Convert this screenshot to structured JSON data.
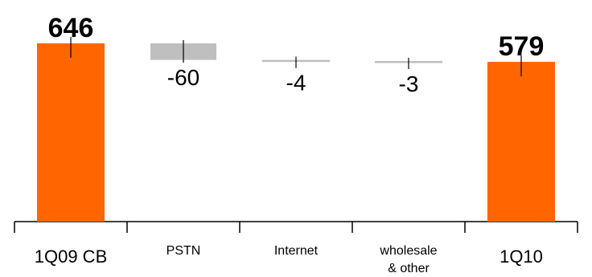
{
  "chart_data": {
    "type": "bar",
    "subtype": "waterfall",
    "title": "",
    "xlabel": "",
    "ylabel": "",
    "categories": [
      "1Q09 CB",
      "PSTN",
      "Internet",
      "wholesale\n& other",
      "1Q10"
    ],
    "values": [
      646,
      -60,
      -4,
      -3,
      579
    ],
    "value_labels": [
      "646",
      "-60",
      "-4",
      "-3",
      "579"
    ],
    "kinds": [
      "total",
      "delta",
      "delta",
      "delta",
      "total"
    ],
    "ylim": [
      0,
      660
    ],
    "colors": {
      "total": "#FF6600",
      "delta": "#BFBFBF",
      "axis": "#000000",
      "text": "#000000"
    }
  }
}
